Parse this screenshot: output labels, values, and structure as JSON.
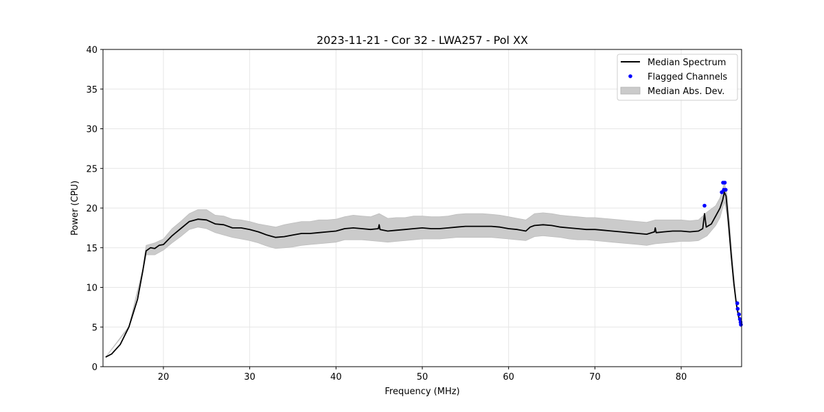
{
  "chart_data": {
    "type": "line",
    "title": "2023-11-21 - Cor 32 - LWA257 - Pol XX",
    "xlabel": "Frequency (MHz)",
    "ylabel": "Power (CPU)",
    "xlim": [
      13.0,
      87.0
    ],
    "ylim": [
      0,
      40
    ],
    "x_ticks": [
      20,
      30,
      40,
      50,
      60,
      70,
      80
    ],
    "y_ticks": [
      0,
      5,
      10,
      15,
      20,
      25,
      30,
      35,
      40
    ],
    "grid": true,
    "legend": {
      "placement": "top-right",
      "entries": [
        "Median Spectrum",
        "Flagged Channels",
        "Median Abs. Dev."
      ]
    },
    "series": [
      {
        "name": "Median Spectrum",
        "kind": "line",
        "color": "#000000",
        "points": [
          [
            13.3,
            1.2
          ],
          [
            14.0,
            1.6
          ],
          [
            15.0,
            2.8
          ],
          [
            16.0,
            5.0
          ],
          [
            17.0,
            8.5
          ],
          [
            17.6,
            12.0
          ],
          [
            18.0,
            14.6
          ],
          [
            18.5,
            15.0
          ],
          [
            19.0,
            14.9
          ],
          [
            19.5,
            15.3
          ],
          [
            20.0,
            15.4
          ],
          [
            21.0,
            16.5
          ],
          [
            22.0,
            17.4
          ],
          [
            23.0,
            18.3
          ],
          [
            24.0,
            18.6
          ],
          [
            25.0,
            18.5
          ],
          [
            26.0,
            18.0
          ],
          [
            27.0,
            17.9
          ],
          [
            28.0,
            17.5
          ],
          [
            29.0,
            17.5
          ],
          [
            30.0,
            17.3
          ],
          [
            31.0,
            17.0
          ],
          [
            32.0,
            16.6
          ],
          [
            33.0,
            16.3
          ],
          [
            34.0,
            16.4
          ],
          [
            35.0,
            16.6
          ],
          [
            36.0,
            16.8
          ],
          [
            37.0,
            16.8
          ],
          [
            38.0,
            16.9
          ],
          [
            39.0,
            17.0
          ],
          [
            40.0,
            17.1
          ],
          [
            41.0,
            17.4
          ],
          [
            42.0,
            17.5
          ],
          [
            43.0,
            17.4
          ],
          [
            44.0,
            17.3
          ],
          [
            44.9,
            17.4
          ],
          [
            45.0,
            17.9
          ],
          [
            45.1,
            17.3
          ],
          [
            46.0,
            17.1
          ],
          [
            47.0,
            17.2
          ],
          [
            48.0,
            17.3
          ],
          [
            49.0,
            17.4
          ],
          [
            50.0,
            17.5
          ],
          [
            51.0,
            17.4
          ],
          [
            52.0,
            17.4
          ],
          [
            53.0,
            17.5
          ],
          [
            54.0,
            17.6
          ],
          [
            55.0,
            17.7
          ],
          [
            56.0,
            17.7
          ],
          [
            57.0,
            17.7
          ],
          [
            58.0,
            17.7
          ],
          [
            59.0,
            17.6
          ],
          [
            60.0,
            17.4
          ],
          [
            61.0,
            17.3
          ],
          [
            62.0,
            17.1
          ],
          [
            62.5,
            17.6
          ],
          [
            63.0,
            17.8
          ],
          [
            64.0,
            17.9
          ],
          [
            65.0,
            17.8
          ],
          [
            66.0,
            17.6
          ],
          [
            67.0,
            17.5
          ],
          [
            68.0,
            17.4
          ],
          [
            69.0,
            17.3
          ],
          [
            70.0,
            17.3
          ],
          [
            71.0,
            17.2
          ],
          [
            72.0,
            17.1
          ],
          [
            73.0,
            17.0
          ],
          [
            74.0,
            16.9
          ],
          [
            75.0,
            16.8
          ],
          [
            76.0,
            16.7
          ],
          [
            76.9,
            17.0
          ],
          [
            77.0,
            17.5
          ],
          [
            77.1,
            16.9
          ],
          [
            78.0,
            17.0
          ],
          [
            79.0,
            17.1
          ],
          [
            80.0,
            17.1
          ],
          [
            81.0,
            17.0
          ],
          [
            82.0,
            17.1
          ],
          [
            82.5,
            17.4
          ],
          [
            82.7,
            19.3
          ],
          [
            82.9,
            17.6
          ],
          [
            83.5,
            18.0
          ],
          [
            84.0,
            19.0
          ],
          [
            84.5,
            20.0
          ],
          [
            84.8,
            21.0
          ],
          [
            85.0,
            22.0
          ],
          [
            85.2,
            21.5
          ],
          [
            85.5,
            18.0
          ],
          [
            85.8,
            14.0
          ],
          [
            86.1,
            10.5
          ],
          [
            86.4,
            7.8
          ],
          [
            86.7,
            6.0
          ],
          [
            86.9,
            5.3
          ]
        ]
      },
      {
        "name": "Flagged Channels",
        "kind": "scatter",
        "color": "#0000ff",
        "points": [
          [
            82.7,
            20.3
          ],
          [
            84.7,
            22.0
          ],
          [
            84.85,
            23.2
          ],
          [
            84.95,
            22.3
          ],
          [
            85.05,
            23.2
          ],
          [
            85.15,
            22.3
          ],
          [
            86.5,
            8.0
          ],
          [
            86.55,
            7.3
          ],
          [
            86.7,
            6.6
          ],
          [
            86.8,
            6.0
          ],
          [
            86.88,
            5.6
          ],
          [
            86.92,
            5.3
          ]
        ]
      },
      {
        "name": "Median Abs. Dev.",
        "kind": "band",
        "color": "#cbcbcb",
        "points": [
          [
            13.3,
            1.2,
            1.2
          ],
          [
            16.0,
            4.9,
            5.1
          ],
          [
            17.6,
            11.8,
            12.3
          ],
          [
            18.0,
            14.1,
            15.3
          ],
          [
            19.0,
            14.1,
            15.6
          ],
          [
            20.0,
            14.7,
            16.1
          ],
          [
            21.0,
            15.6,
            17.4
          ],
          [
            22.0,
            16.4,
            18.3
          ],
          [
            23.0,
            17.3,
            19.3
          ],
          [
            24.0,
            17.6,
            19.8
          ],
          [
            25.0,
            17.4,
            19.8
          ],
          [
            26.0,
            16.9,
            19.1
          ],
          [
            27.0,
            16.6,
            19.0
          ],
          [
            28.0,
            16.3,
            18.6
          ],
          [
            29.0,
            16.1,
            18.5
          ],
          [
            30.0,
            15.9,
            18.3
          ],
          [
            31.0,
            15.6,
            18.0
          ],
          [
            32.0,
            15.2,
            17.8
          ],
          [
            33.0,
            14.9,
            17.6
          ],
          [
            34.0,
            15.0,
            17.9
          ],
          [
            35.0,
            15.1,
            18.1
          ],
          [
            36.0,
            15.3,
            18.3
          ],
          [
            37.0,
            15.4,
            18.3
          ],
          [
            38.0,
            15.5,
            18.5
          ],
          [
            39.0,
            15.6,
            18.5
          ],
          [
            40.0,
            15.7,
            18.6
          ],
          [
            41.0,
            16.0,
            18.9
          ],
          [
            42.0,
            16.0,
            19.1
          ],
          [
            43.0,
            16.0,
            19.0
          ],
          [
            44.0,
            15.9,
            18.9
          ],
          [
            45.0,
            15.8,
            19.3
          ],
          [
            46.0,
            15.7,
            18.7
          ],
          [
            47.0,
            15.8,
            18.8
          ],
          [
            48.0,
            15.9,
            18.8
          ],
          [
            49.0,
            16.0,
            19.0
          ],
          [
            50.0,
            16.1,
            19.0
          ],
          [
            51.0,
            16.1,
            18.9
          ],
          [
            52.0,
            16.1,
            18.9
          ],
          [
            53.0,
            16.2,
            19.0
          ],
          [
            54.0,
            16.3,
            19.2
          ],
          [
            55.0,
            16.3,
            19.3
          ],
          [
            56.0,
            16.3,
            19.3
          ],
          [
            57.0,
            16.3,
            19.3
          ],
          [
            58.0,
            16.3,
            19.2
          ],
          [
            59.0,
            16.2,
            19.1
          ],
          [
            60.0,
            16.1,
            18.9
          ],
          [
            61.0,
            16.0,
            18.7
          ],
          [
            62.0,
            15.9,
            18.5
          ],
          [
            63.0,
            16.4,
            19.3
          ],
          [
            64.0,
            16.5,
            19.4
          ],
          [
            65.0,
            16.4,
            19.3
          ],
          [
            66.0,
            16.3,
            19.1
          ],
          [
            67.0,
            16.1,
            19.0
          ],
          [
            68.0,
            16.0,
            18.9
          ],
          [
            69.0,
            16.0,
            18.8
          ],
          [
            70.0,
            15.9,
            18.8
          ],
          [
            71.0,
            15.8,
            18.7
          ],
          [
            72.0,
            15.7,
            18.6
          ],
          [
            73.0,
            15.6,
            18.5
          ],
          [
            74.0,
            15.5,
            18.4
          ],
          [
            75.0,
            15.4,
            18.3
          ],
          [
            76.0,
            15.3,
            18.2
          ],
          [
            77.0,
            15.5,
            18.5
          ],
          [
            78.0,
            15.6,
            18.5
          ],
          [
            79.0,
            15.7,
            18.5
          ],
          [
            80.0,
            15.8,
            18.5
          ],
          [
            81.0,
            15.8,
            18.4
          ],
          [
            82.0,
            15.9,
            18.5
          ],
          [
            83.0,
            16.5,
            19.5
          ],
          [
            84.0,
            17.8,
            20.3
          ],
          [
            84.5,
            18.8,
            21.3
          ],
          [
            85.0,
            20.8,
            23.2
          ],
          [
            85.3,
            19.2,
            21.8
          ],
          [
            85.6,
            15.8,
            18.2
          ],
          [
            86.0,
            11.3,
            12.7
          ],
          [
            86.4,
            7.6,
            8.2
          ],
          [
            86.9,
            5.2,
            5.5
          ]
        ]
      }
    ]
  }
}
